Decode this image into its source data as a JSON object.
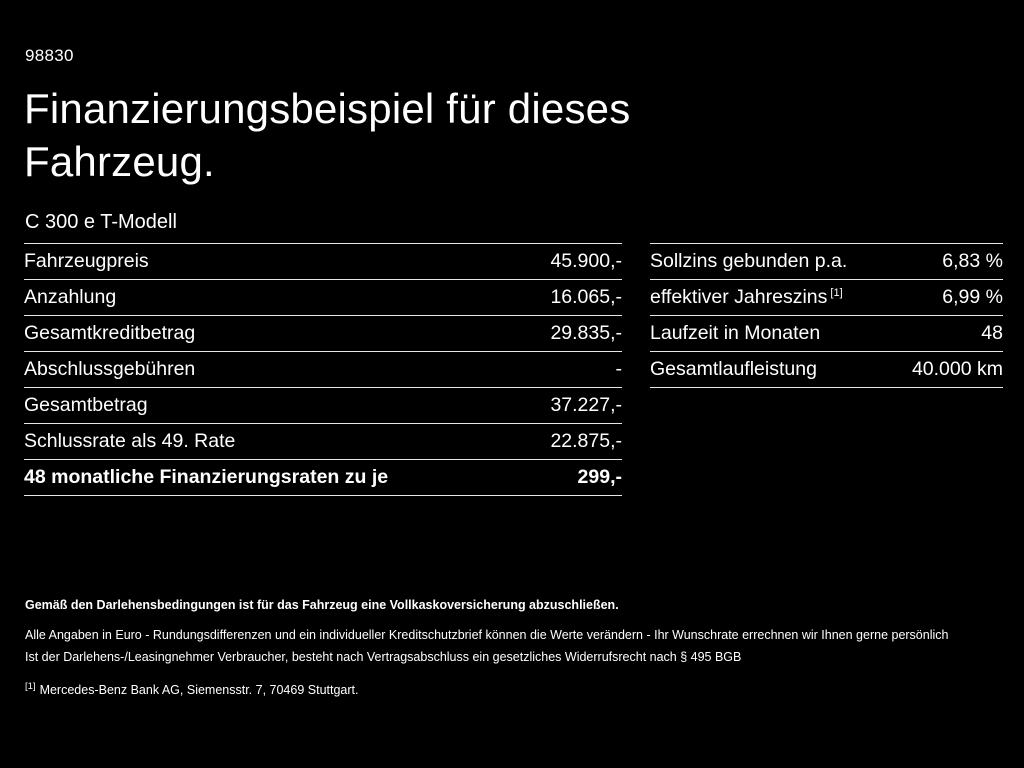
{
  "colors": {
    "background": "#000000",
    "text": "#ffffff",
    "divider": "#e6e6e6"
  },
  "header": {
    "doc_id": "98830",
    "title_line1": "Finanzierungsbeispiel für dieses",
    "title_line2": "Fahrzeug.",
    "model": "C 300 e T-Modell"
  },
  "left_table": {
    "rows": [
      {
        "label": "Fahrzeugpreis",
        "value": "45.900,-"
      },
      {
        "label": "Anzahlung",
        "value": "16.065,-"
      },
      {
        "label": "Gesamtkreditbetrag",
        "value": "29.835,-"
      },
      {
        "label": "Abschlussgebühren",
        "value": "-"
      },
      {
        "label": "Gesamtbetrag",
        "value": "37.227,-"
      },
      {
        "label": "Schlussrate als 49. Rate",
        "value": "22.875,-"
      },
      {
        "label": "48 monatliche Finanzierungsraten zu je",
        "value": "299,-"
      }
    ]
  },
  "right_table": {
    "rows": [
      {
        "label": "Sollzins gebunden p.a.",
        "marker": "",
        "value": "6,83 %"
      },
      {
        "label": "effektiver Jahreszins",
        "marker": "[1]",
        "value": "6,99 %"
      },
      {
        "label": "Laufzeit in Monaten",
        "marker": "",
        "value": "48"
      },
      {
        "label": "Gesamtlaufleistung",
        "marker": "",
        "value": "40.000 km"
      }
    ]
  },
  "footnotes": {
    "bold_note": "Gemäß den Darlehensbedingungen ist für das Fahrzeug eine Vollkaskoversicherung abzuschließen.",
    "note1": "Alle Angaben in Euro - Rundungsdifferenzen und ein individueller Kreditschutzbrief können die Werte verändern - Ihr Wunschrate errechnen wir Ihnen gerne persönlich",
    "note2": "Ist der Darlehens-/Leasingnehmer Verbraucher, besteht nach Vertragsabschluss ein gesetzliches Widerrufsrecht nach § 495 BGB",
    "ref_marker": "[1]",
    "ref_text": "Mercedes-Benz Bank AG, Siemensstr. 7, 70469 Stuttgart."
  }
}
